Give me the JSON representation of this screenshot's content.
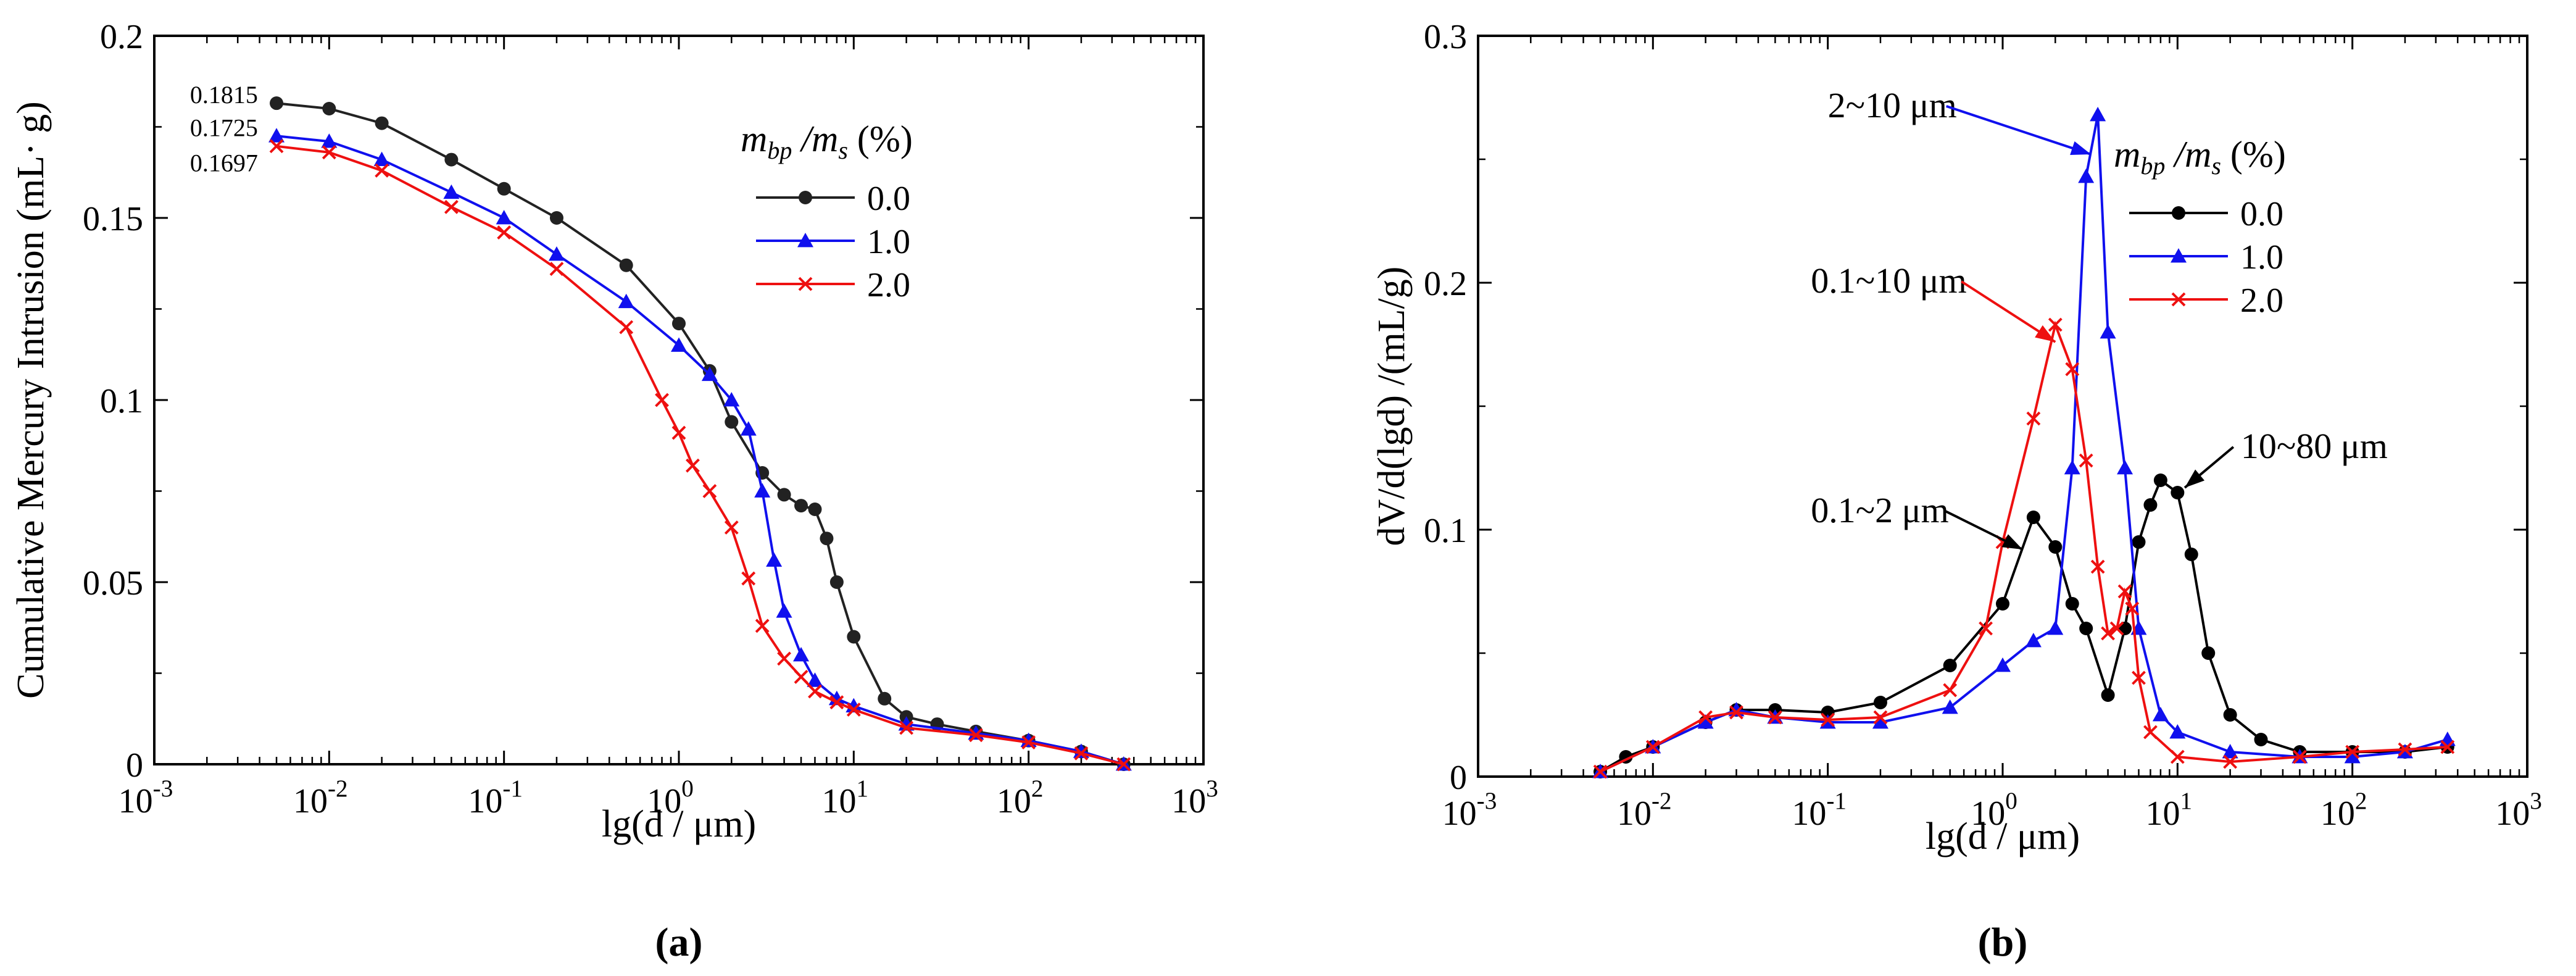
{
  "chart_data": [
    {
      "panel_label": "(a)",
      "type": "line",
      "xlabel": "lg(d / μm)",
      "ylabel": "Cumulative Mercury Intrusion (mL· g)",
      "xscale": "log",
      "xlim": [
        0.001,
        1000
      ],
      "ylim": [
        0,
        0.2
      ],
      "x_ticks": [
        {
          "value": 0.001,
          "base": "10",
          "exp": "-3"
        },
        {
          "value": 0.01,
          "base": "10",
          "exp": "-2"
        },
        {
          "value": 0.1,
          "base": "10",
          "exp": "-1"
        },
        {
          "value": 1,
          "base": "10",
          "exp": "0"
        },
        {
          "value": 10,
          "base": "10",
          "exp": "1"
        },
        {
          "value": 100,
          "base": "10",
          "exp": "2"
        },
        {
          "value": 1000,
          "base": "10",
          "exp": "3"
        }
      ],
      "y_ticks": [
        {
          "value": 0,
          "label": "0"
        },
        {
          "value": 0.05,
          "label": "0.05"
        },
        {
          "value": 0.1,
          "label": "0.1"
        },
        {
          "value": 0.15,
          "label": "0.15"
        },
        {
          "value": 0.2,
          "label": "0.2"
        }
      ],
      "legend_title": {
        "main": "m",
        "sub1": "bp",
        "sep": " /m",
        "sub2": "s",
        "tail": " (%)"
      },
      "legend_position": "right, below the top",
      "grid": false,
      "series": [
        {
          "name": "0.0",
          "color": "#222222",
          "marker": "circle",
          "x": [
            0.005,
            0.01,
            0.02,
            0.05,
            0.1,
            0.2,
            0.5,
            1,
            1.5,
            2,
            3,
            4,
            5,
            6,
            7,
            8,
            10,
            15,
            20,
            30,
            50,
            100,
            200,
            350
          ],
          "y": [
            0.1815,
            0.18,
            0.176,
            0.166,
            0.158,
            0.15,
            0.137,
            0.121,
            0.108,
            0.094,
            0.08,
            0.074,
            0.071,
            0.07,
            0.062,
            0.05,
            0.035,
            0.018,
            0.013,
            0.011,
            0.009,
            0.0065,
            0.0035,
            0.0
          ]
        },
        {
          "name": "1.0",
          "color": "#1010ee",
          "marker": "triangle",
          "x": [
            0.005,
            0.01,
            0.02,
            0.05,
            0.1,
            0.2,
            0.5,
            1,
            1.5,
            2,
            2.5,
            3,
            3.5,
            4,
            5,
            6,
            8,
            10,
            20,
            50,
            100,
            200,
            350
          ],
          "y": [
            0.1725,
            0.171,
            0.166,
            0.157,
            0.15,
            0.14,
            0.127,
            0.115,
            0.107,
            0.1,
            0.092,
            0.075,
            0.056,
            0.042,
            0.03,
            0.023,
            0.018,
            0.016,
            0.011,
            0.0085,
            0.0065,
            0.0035,
            0.0
          ]
        },
        {
          "name": "2.0",
          "color": "#ee1010",
          "marker": "cross",
          "x": [
            0.005,
            0.01,
            0.02,
            0.05,
            0.1,
            0.2,
            0.5,
            0.8,
            1,
            1.2,
            1.5,
            2,
            2.5,
            3,
            4,
            5,
            6,
            8,
            10,
            20,
            50,
            100,
            200,
            350
          ],
          "y": [
            0.1697,
            0.168,
            0.163,
            0.153,
            0.146,
            0.136,
            0.12,
            0.1,
            0.091,
            0.082,
            0.075,
            0.065,
            0.051,
            0.038,
            0.029,
            0.024,
            0.02,
            0.017,
            0.015,
            0.01,
            0.008,
            0.006,
            0.003,
            0.0
          ]
        }
      ],
      "annotations": [
        {
          "text": "0.1815",
          "color": "#000000",
          "x": 0.0016,
          "y": 0.1815
        },
        {
          "text": "0.1725",
          "color": "#1010ee",
          "x": 0.0016,
          "y": 0.1725
        },
        {
          "text": "0.1697",
          "color": "#ee1010",
          "x": 0.0016,
          "y": 0.1628
        }
      ]
    },
    {
      "panel_label": "(b)",
      "type": "line",
      "xlabel": "lg(d / μm)",
      "ylabel": "dV/d(lgd) /(mL/g)",
      "xscale": "log",
      "xlim": [
        0.001,
        1000
      ],
      "ylim": [
        0,
        0.3
      ],
      "x_ticks": [
        {
          "value": 0.001,
          "base": "10",
          "exp": "-3"
        },
        {
          "value": 0.01,
          "base": "10",
          "exp": "-2"
        },
        {
          "value": 0.1,
          "base": "10",
          "exp": "-1"
        },
        {
          "value": 1,
          "base": "10",
          "exp": "0"
        },
        {
          "value": 10,
          "base": "10",
          "exp": "1"
        },
        {
          "value": 100,
          "base": "10",
          "exp": "2"
        },
        {
          "value": 1000,
          "base": "10",
          "exp": "3"
        }
      ],
      "y_ticks": [
        {
          "value": 0,
          "label": "0"
        },
        {
          "value": 0.1,
          "label": "0.1"
        },
        {
          "value": 0.2,
          "label": "0.2"
        },
        {
          "value": 0.3,
          "label": "0.3"
        }
      ],
      "legend_title": {
        "main": "m",
        "sub1": "bp",
        "sep": " /m",
        "sub2": "s",
        "tail": " (%)"
      },
      "legend_position": "right, below the top",
      "grid": false,
      "series": [
        {
          "name": "0.0",
          "color": "#000000",
          "marker": "circle",
          "x": [
            0.005,
            0.007,
            0.01,
            0.02,
            0.03,
            0.05,
            0.1,
            0.2,
            0.5,
            1,
            1.5,
            2,
            2.5,
            3,
            4,
            5,
            6,
            7,
            8,
            10,
            12,
            15,
            20,
            30,
            50,
            100,
            200,
            350
          ],
          "y": [
            0.002,
            0.008,
            0.012,
            0.022,
            0.027,
            0.027,
            0.026,
            0.03,
            0.045,
            0.07,
            0.105,
            0.093,
            0.07,
            0.06,
            0.033,
            0.06,
            0.095,
            0.11,
            0.12,
            0.115,
            0.09,
            0.05,
            0.025,
            0.015,
            0.01,
            0.01,
            0.01,
            0.012
          ]
        },
        {
          "name": "1.0",
          "color": "#1010ee",
          "marker": "triangle",
          "x": [
            0.005,
            0.01,
            0.02,
            0.03,
            0.05,
            0.1,
            0.2,
            0.5,
            1,
            1.5,
            2,
            2.5,
            3,
            3.5,
            4,
            5,
            6,
            8,
            10,
            20,
            50,
            100,
            200,
            350
          ],
          "y": [
            0.002,
            0.012,
            0.022,
            0.027,
            0.024,
            0.022,
            0.022,
            0.028,
            0.045,
            0.055,
            0.06,
            0.125,
            0.243,
            0.268,
            0.18,
            0.125,
            0.06,
            0.025,
            0.018,
            0.01,
            0.008,
            0.008,
            0.01,
            0.015
          ]
        },
        {
          "name": "2.0",
          "color": "#ee1010",
          "marker": "cross",
          "x": [
            0.005,
            0.01,
            0.02,
            0.03,
            0.05,
            0.1,
            0.2,
            0.5,
            0.8,
            1,
            1.5,
            2,
            2.5,
            3,
            3.5,
            4,
            4.5,
            5,
            5.5,
            6,
            7,
            10,
            20,
            50,
            100,
            200,
            350
          ],
          "y": [
            0.002,
            0.012,
            0.024,
            0.026,
            0.024,
            0.023,
            0.024,
            0.035,
            0.06,
            0.095,
            0.145,
            0.183,
            0.165,
            0.128,
            0.085,
            0.058,
            0.06,
            0.075,
            0.068,
            0.04,
            0.018,
            0.008,
            0.006,
            0.008,
            0.01,
            0.011,
            0.012
          ]
        }
      ],
      "annotations": [
        {
          "text": "2~10 μm",
          "color": "#000000",
          "x": 0.1,
          "y": 0.267,
          "arrow_color": "#1010ee",
          "arrow_to": [
            3.2,
            0.252
          ]
        },
        {
          "text": "0.1~10 μm",
          "color": "#000000",
          "x": 0.08,
          "y": 0.196,
          "arrow_color": "#ee1010",
          "arrow_to": [
            2.0,
            0.176
          ]
        },
        {
          "text": "0.1~2 μm",
          "color": "#000000",
          "x": 0.08,
          "y": 0.103,
          "arrow_color": "#000000",
          "arrow_to": [
            1.3,
            0.092
          ]
        },
        {
          "text": "10~80 μm",
          "color": "#000000",
          "x": 23,
          "y": 0.129,
          "arrow_color": "#000000",
          "arrow_to": [
            11,
            0.117
          ]
        }
      ]
    }
  ]
}
